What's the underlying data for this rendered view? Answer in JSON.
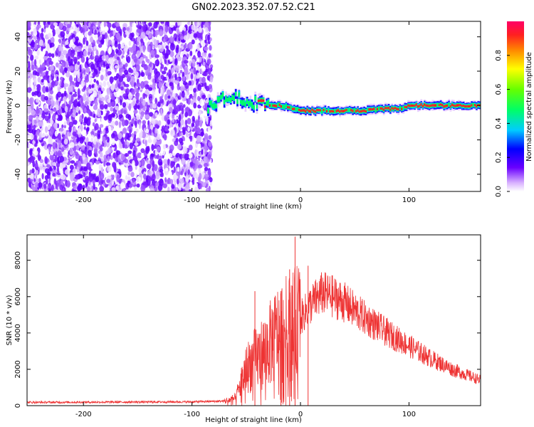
{
  "chart_data": [
    {
      "type": "heatmap",
      "title": "GN02.2023.352.07.52.C21",
      "xlabel": "Height of straight line (km)",
      "ylabel": "Frequency (Hz)",
      "xlim": [
        -252,
        166
      ],
      "ylim": [
        -50,
        49
      ],
      "xticks": [
        -200,
        -100,
        0,
        100
      ],
      "yticks": [
        -40,
        -20,
        0,
        20,
        40
      ],
      "colorbar": {
        "label": "Normalized spectral amplitude",
        "range": [
          0,
          1
        ],
        "ticks": [
          "0.0",
          "0.2",
          "0.4",
          "0.6",
          "0.8"
        ]
      },
      "regions": [
        {
          "description_x": [
            -252,
            -82
          ],
          "kind": "broadband noise"
        },
        {
          "description_x": [
            -82,
            166
          ],
          "kind": "narrow tone near 0 Hz"
        }
      ],
      "ridge": {
        "x": [
          -86,
          -80,
          -70,
          -60,
          -50,
          -40,
          -30,
          -20,
          -10,
          0,
          10,
          20,
          30,
          40,
          50,
          60,
          70,
          80,
          90,
          100,
          110,
          120,
          130,
          140,
          150,
          166
        ],
        "y": [
          0,
          2,
          4,
          5,
          3,
          1,
          0,
          0,
          -1,
          -3,
          -3,
          -3,
          -3,
          -3,
          -3,
          -3,
          -2,
          -2,
          -2,
          0,
          0,
          0,
          0,
          0,
          0,
          0
        ]
      },
      "grid": false
    },
    {
      "type": "line",
      "title": "",
      "xlabel": "Height of straight line (km)",
      "ylabel": "SNR (10 * v/v)",
      "xlim": [
        -252,
        166
      ],
      "ylim": [
        0,
        9400
      ],
      "xticks": [
        -200,
        -100,
        0,
        100
      ],
      "yticks": [
        0,
        2000,
        4000,
        6000,
        8000
      ],
      "series": [
        {
          "color": "#ee3333",
          "x": [
            -252,
            -200,
            -150,
            -100,
            -70,
            -60,
            -55,
            -50,
            -45,
            -40,
            -35,
            -30,
            -25,
            -20,
            -15,
            -10,
            -5,
            0,
            10,
            20,
            30,
            40,
            60,
            80,
            100,
            120,
            140,
            166
          ],
          "y": [
            180,
            190,
            200,
            210,
            250,
            400,
            1200,
            2000,
            2400,
            2600,
            2900,
            3200,
            3700,
            4000,
            4200,
            4300,
            4500,
            4800,
            5600,
            6200,
            6000,
            5700,
            4800,
            4000,
            3300,
            2600,
            2000,
            1400
          ]
        }
      ],
      "spikes": [
        {
          "x": -5,
          "y": 9300
        },
        {
          "x": -10,
          "y": 7500
        },
        {
          "x": 7,
          "y": 7700
        },
        {
          "x": -42,
          "y": 6300
        },
        {
          "x": -18,
          "y": 6300
        }
      ],
      "grid": false
    }
  ]
}
